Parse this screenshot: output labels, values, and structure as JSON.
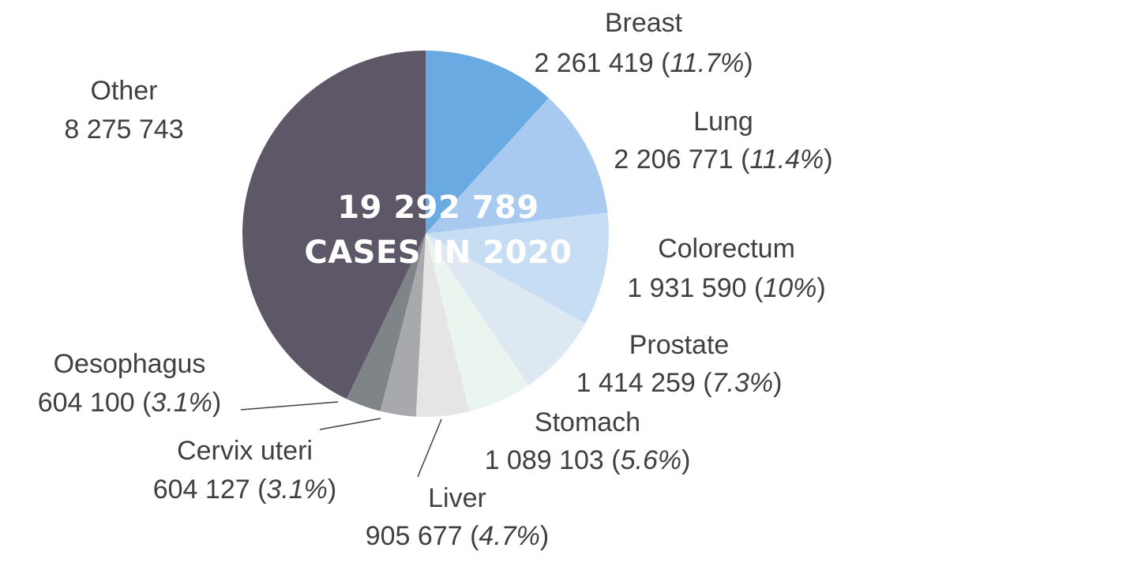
{
  "chart_data": {
    "type": "pie",
    "center_label": {
      "line1": "19 292 789",
      "line2": "CASES IN 2020"
    },
    "slices": [
      {
        "name": "Breast",
        "value_label": "2 261 419",
        "percent_label": "11.7%",
        "value": 2261419,
        "color": "#6aaae2"
      },
      {
        "name": "Lung",
        "value_label": "2 206 771",
        "percent_label": "11.4%",
        "value": 2206771,
        "color": "#a9caf0"
      },
      {
        "name": "Colorectum",
        "value_label": "1 931 590",
        "percent_label": "10%",
        "value": 1931590,
        "color": "#c7ddf3"
      },
      {
        "name": "Prostate",
        "value_label": "1 414 259",
        "percent_label": "7.3%",
        "value": 1414259,
        "color": "#dde8f3"
      },
      {
        "name": "Stomach",
        "value_label": "1 089 103",
        "percent_label": "5.6%",
        "value": 1089103,
        "color": "#eaf5ef"
      },
      {
        "name": "Liver",
        "value_label": "905 677",
        "percent_label": "4.7%",
        "value": 905677,
        "color": "#e5e5e5"
      },
      {
        "name": "Cervix uteri",
        "value_label": "604 127",
        "percent_label": "3.1%",
        "value": 604127,
        "color": "#a8a9ad"
      },
      {
        "name": "Oesophagus",
        "value_label": "604 100",
        "percent_label": "3.1%",
        "value": 604100,
        "color": "#7e8488"
      },
      {
        "name": "Other",
        "value_label": "8 275 743",
        "percent_label": "",
        "value": 8275743,
        "color": "#5e5767"
      }
    ]
  }
}
